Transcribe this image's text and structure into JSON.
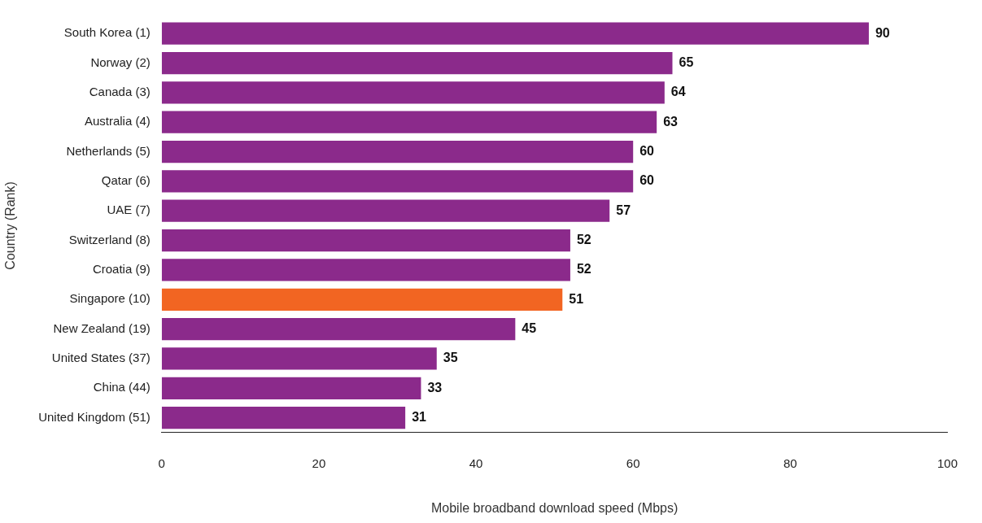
{
  "chart_data": {
    "type": "bar",
    "orientation": "horizontal",
    "xlabel": "Mobile broadband download speed (Mbps)",
    "ylabel": "Country (Rank)",
    "categories": [
      "South Korea (1)",
      "Norway (2)",
      "Canada (3)",
      "Australia (4)",
      "Netherlands (5)",
      "Qatar (6)",
      "UAE (7)",
      "Switzerland (8)",
      "Croatia (9)",
      "Singapore (10)",
      "New Zealand (19)",
      "United States (37)",
      "China (44)",
      "United Kingdom (51)"
    ],
    "values": [
      90,
      65,
      64,
      63,
      60,
      60,
      57,
      52,
      52,
      51,
      45,
      35,
      33,
      31
    ],
    "colors": [
      "#8b2a8b",
      "#8b2a8b",
      "#8b2a8b",
      "#8b2a8b",
      "#8b2a8b",
      "#8b2a8b",
      "#8b2a8b",
      "#8b2a8b",
      "#8b2a8b",
      "#f26522",
      "#8b2a8b",
      "#8b2a8b",
      "#8b2a8b",
      "#8b2a8b"
    ],
    "xlim": [
      0,
      100
    ],
    "xticks": [
      0,
      20,
      40,
      60,
      80,
      100
    ],
    "data_labels": true,
    "grid": false,
    "legend": false
  }
}
